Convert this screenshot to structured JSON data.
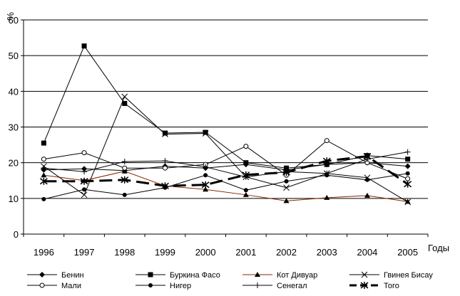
{
  "chart_data": {
    "type": "line",
    "title": "",
    "ylabel": "%",
    "xlabel": "Годы",
    "ylim": [
      0,
      60
    ],
    "yticks": [
      0,
      10,
      20,
      30,
      40,
      50,
      60
    ],
    "grid": "horizontal",
    "legend_position": "bottom",
    "x": [
      "1996",
      "1997",
      "1998",
      "1999",
      "2000",
      "2001",
      "2002",
      "2003",
      "2004",
      "2005"
    ],
    "series": [
      {
        "name": "Бенин",
        "marker": "diamond",
        "color": "#000000",
        "dash": "solid",
        "values": [
          18,
          18.3,
          17.8,
          19,
          18.5,
          19.5,
          18,
          19.5,
          20,
          19
        ]
      },
      {
        "name": "Буркина Фасо",
        "marker": "square",
        "color": "#000000",
        "dash": "solid",
        "values": [
          25.5,
          52.7,
          36.6,
          28.3,
          28.5,
          20,
          18.5,
          19.5,
          22,
          21
        ]
      },
      {
        "name": "Кот Дивуар",
        "marker": "triangle",
        "color": "#8B2500",
        "dash": "solid",
        "values": [
          16.5,
          15,
          17.6,
          13.5,
          12.5,
          11,
          9.3,
          10.2,
          10.8,
          9.1
        ]
      },
      {
        "name": "Гвинея Бисау",
        "marker": "x",
        "color": "#000000",
        "dash": "solid",
        "values": [
          19,
          11,
          38.5,
          28,
          28.2,
          16,
          13,
          17,
          15.8,
          9
        ]
      },
      {
        "name": "Мали",
        "marker": "circle-open",
        "color": "#000000",
        "dash": "solid",
        "values": [
          21,
          22.8,
          18.5,
          18.5,
          19.5,
          24.6,
          16.5,
          26.2,
          20,
          15.5
        ]
      },
      {
        "name": "Нигер",
        "marker": "circle-filled",
        "color": "#000000",
        "dash": "solid",
        "values": [
          9.8,
          12.5,
          11,
          13,
          16.5,
          12.3,
          14.8,
          16.5,
          15.2,
          17
        ]
      },
      {
        "name": "Сенегал",
        "marker": "plus",
        "color": "#000000",
        "dash": "solid",
        "values": [
          18.5,
          17.5,
          20.3,
          20.5,
          18.8,
          16,
          17.5,
          17,
          21,
          23
        ]
      },
      {
        "name": "Того",
        "marker": "asterisk",
        "color": "#000000",
        "dash": "long-dash",
        "values": [
          14.8,
          14.8,
          15.2,
          13.5,
          13.8,
          16.6,
          17.3,
          20.5,
          21.8,
          14
        ]
      }
    ]
  }
}
